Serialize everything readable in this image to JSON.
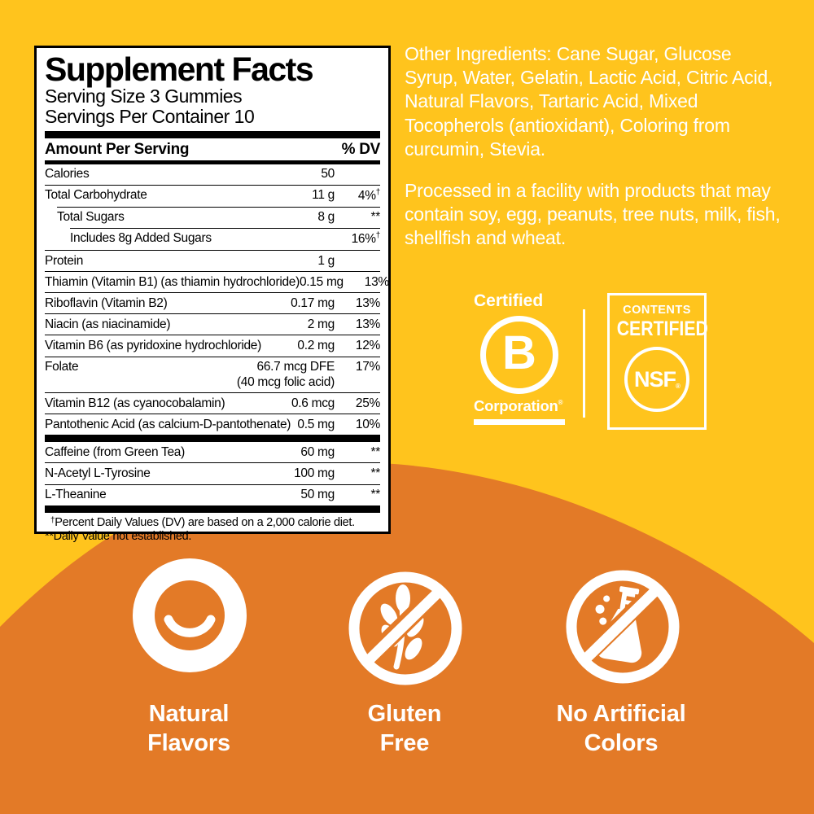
{
  "colors": {
    "yellow_bg": "#FFC41D",
    "orange_bg": "#E37A27",
    "panel_bg": "#FFFFFF",
    "panel_text": "#000000",
    "light_text": "#FFFFFF"
  },
  "supplement_facts": {
    "title": "Supplement Facts",
    "serving_size": "Serving Size 3 Gummies",
    "servings_per_container": "Servings Per Container 10",
    "column_headers": {
      "amount": "Amount Per Serving",
      "dv": "% DV"
    },
    "dagger": "†",
    "rows": [
      {
        "name": "Calories",
        "amount": "50",
        "dv": "",
        "indent": 0,
        "no_top": true
      },
      {
        "name": "Total Carbohydrate",
        "amount": "11 g",
        "dv": "4%",
        "dagger": true,
        "indent": 0
      },
      {
        "name": "Total Sugars",
        "amount": "8 g",
        "dv": "**",
        "indent": 1
      },
      {
        "name": "Includes 8g Added Sugars",
        "amount": "",
        "dv": "16%",
        "dagger": true,
        "indent": 2
      },
      {
        "name": "Protein",
        "amount": "1 g",
        "dv": "",
        "indent": 0
      },
      {
        "name": "Thiamin (Vitamin B1) (as thiamin hydrochloride)",
        "amount": "0.15 mg",
        "dv": "13%",
        "indent": 0
      },
      {
        "name": "Riboflavin (Vitamin B2)",
        "amount": "0.17 mg",
        "dv": "13%",
        "indent": 0
      },
      {
        "name": "Niacin (as niacinamide)",
        "amount": "2 mg",
        "dv": "13%",
        "indent": 0
      },
      {
        "name": "Vitamin B6 (as pyridoxine hydrochloride)",
        "amount": "0.2 mg",
        "dv": "12%",
        "indent": 0
      },
      {
        "name": "Folate",
        "amount": "66.7 mcg DFE",
        "amount2": "(40 mcg folic acid)",
        "dv": "17%",
        "indent": 0
      },
      {
        "name": "Vitamin B12 (as cyanocobalamin)",
        "amount": "0.6 mcg",
        "dv": "25%",
        "indent": 0
      },
      {
        "name": "Pantothenic Acid (as calcium-D-pantothenate)",
        "amount": "0.5 mg",
        "dv": "10%",
        "indent": 0,
        "thick_after": true
      },
      {
        "name": "Caffeine (from Green Tea)",
        "amount": "60 mg",
        "dv": "**",
        "indent": 0,
        "no_top": true
      },
      {
        "name": "N-Acetyl L-Tyrosine",
        "amount": "100 mg",
        "dv": "**",
        "indent": 0
      },
      {
        "name": "L-Theanine",
        "amount": "50 mg",
        "dv": "**",
        "indent": 0,
        "thick_after": true
      }
    ],
    "footnote1_sup": "†",
    "footnote1": "Percent Daily Values (DV) are based on a 2,000 calorie diet.",
    "footnote2": "**Daily Value not established."
  },
  "right_column": {
    "other_ingredients": "Other Ingredients: Cane Sugar, Glucose Syrup, Water, Gelatin, Lactic Acid, Citric Acid, Natural Flavors, Tartaric Acid, Mixed Tocopherols (antioxidant), Coloring from curcumin, Stevia.",
    "allergen_statement": "Processed in a facility with products that may contain soy, egg, peanuts, tree nuts, milk, fish, shellfish and wheat."
  },
  "certifications": {
    "bcorp": {
      "top": "Certified",
      "letter": "B",
      "bottom": "Corporation",
      "reg": "®"
    },
    "nsf": {
      "line1": "CONTENTS",
      "line2": "CERTIFIED",
      "circle": "NSF",
      "reg": "®"
    }
  },
  "badges": [
    {
      "line1": "Natural",
      "line2": "Flavors"
    },
    {
      "line1": "Gluten",
      "line2": "Free"
    },
    {
      "line1": "No Artificial",
      "line2": "Colors"
    }
  ]
}
